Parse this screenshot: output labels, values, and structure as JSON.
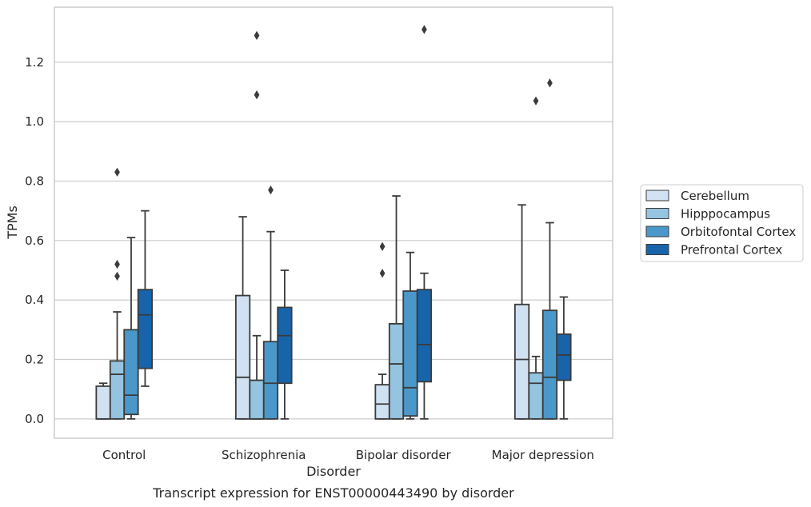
{
  "chart_data": {
    "type": "box",
    "xlabel": "Disorder",
    "ylabel": "TPMs",
    "caption": "Transcript expression for ENST00000443490 by disorder",
    "ylim": [
      -0.065,
      1.385
    ],
    "yticks": [
      "0.0",
      "0.2",
      "0.4",
      "0.6",
      "0.8",
      "1.0",
      "1.2"
    ],
    "grid": "horizontal",
    "legend_position": "right",
    "categories": [
      "Control",
      "Schizophrenia",
      "Bipolar disorder",
      "Major depression"
    ],
    "series": [
      {
        "name": "Cerebellum",
        "color": "#d0e1f2",
        "boxes": [
          {
            "whislo": 0.0,
            "q1": 0.0,
            "med": 0.0,
            "q3": 0.11,
            "whishi": 0.12,
            "fliers": []
          },
          {
            "whislo": 0.0,
            "q1": 0.0,
            "med": 0.14,
            "q3": 0.415,
            "whishi": 0.68,
            "fliers": []
          },
          {
            "whislo": 0.0,
            "q1": 0.0,
            "med": 0.05,
            "q3": 0.115,
            "whishi": 0.15,
            "fliers": [
              0.49,
              0.58
            ]
          },
          {
            "whislo": 0.0,
            "q1": 0.0,
            "med": 0.2,
            "q3": 0.385,
            "whishi": 0.72,
            "fliers": []
          }
        ]
      },
      {
        "name": "Hipppocampus",
        "color": "#94c4df",
        "boxes": [
          {
            "whislo": 0.0,
            "q1": 0.0,
            "med": 0.15,
            "q3": 0.195,
            "whishi": 0.36,
            "fliers": [
              0.48,
              0.52,
              0.83
            ]
          },
          {
            "whislo": 0.0,
            "q1": 0.0,
            "med": 0.0,
            "q3": 0.13,
            "whishi": 0.28,
            "fliers": [
              1.09,
              1.29
            ]
          },
          {
            "whislo": 0.0,
            "q1": 0.0,
            "med": 0.185,
            "q3": 0.32,
            "whishi": 0.75,
            "fliers": []
          },
          {
            "whislo": 0.0,
            "q1": 0.0,
            "med": 0.12,
            "q3": 0.155,
            "whishi": 0.21,
            "fliers": [
              1.07
            ]
          }
        ]
      },
      {
        "name": "Orbitofontal Cortex",
        "color": "#4a98c9",
        "boxes": [
          {
            "whislo": 0.0,
            "q1": 0.015,
            "med": 0.08,
            "q3": 0.3,
            "whishi": 0.61,
            "fliers": []
          },
          {
            "whislo": 0.0,
            "q1": 0.0,
            "med": 0.12,
            "q3": 0.26,
            "whishi": 0.63,
            "fliers": [
              0.77
            ]
          },
          {
            "whislo": 0.0,
            "q1": 0.01,
            "med": 0.105,
            "q3": 0.43,
            "whishi": 0.56,
            "fliers": []
          },
          {
            "whislo": 0.0,
            "q1": 0.0,
            "med": 0.14,
            "q3": 0.365,
            "whishi": 0.66,
            "fliers": [
              1.13
            ]
          }
        ]
      },
      {
        "name": "Prefrontal Cortex",
        "color": "#1764ab",
        "boxes": [
          {
            "whislo": 0.11,
            "q1": 0.17,
            "med": 0.35,
            "q3": 0.435,
            "whishi": 0.7,
            "fliers": []
          },
          {
            "whislo": 0.0,
            "q1": 0.12,
            "med": 0.28,
            "q3": 0.375,
            "whishi": 0.5,
            "fliers": []
          },
          {
            "whislo": 0.0,
            "q1": 0.125,
            "med": 0.25,
            "q3": 0.435,
            "whishi": 0.49,
            "fliers": [
              1.31
            ]
          },
          {
            "whislo": 0.0,
            "q1": 0.13,
            "med": 0.215,
            "q3": 0.285,
            "whishi": 0.41,
            "fliers": []
          }
        ]
      }
    ]
  }
}
